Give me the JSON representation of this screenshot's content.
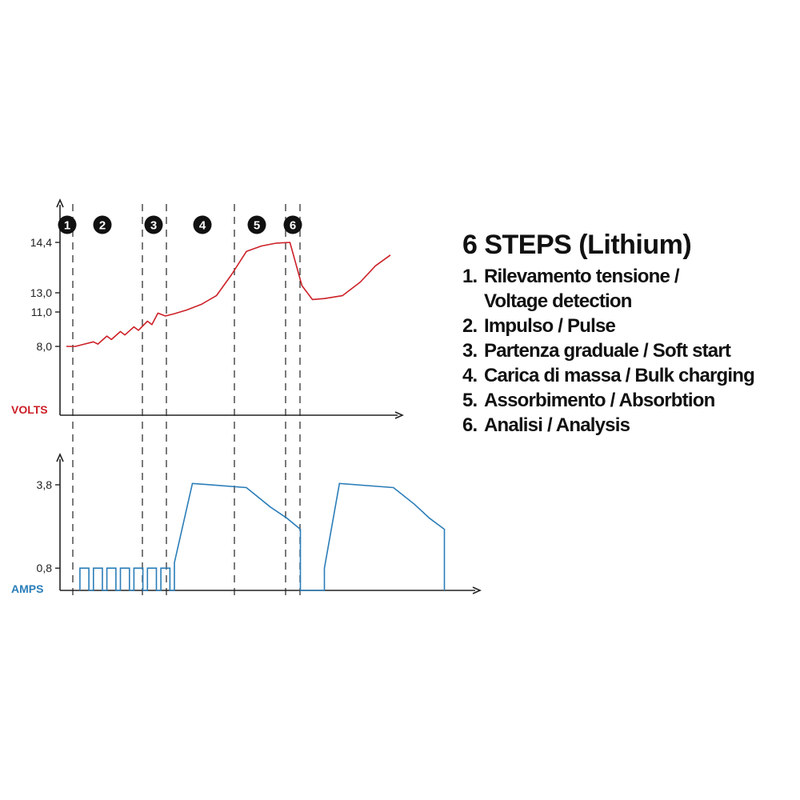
{
  "chart_data": [
    {
      "type": "line",
      "ylabel": "VOLTS",
      "yticks": [
        "8,0",
        "11,0",
        "13,0",
        "14,4"
      ],
      "ytick_values": [
        8.0,
        11.0,
        13.0,
        14.4
      ],
      "series": [
        {
          "color": "#cc2027",
          "points": [
            [
              0,
              8.0
            ],
            [
              0.3,
              8.0
            ],
            [
              0.6,
              8.2
            ],
            [
              0.9,
              8.4
            ],
            [
              1.05,
              8.2
            ],
            [
              1.35,
              8.9
            ],
            [
              1.5,
              8.6
            ],
            [
              1.8,
              9.3
            ],
            [
              1.95,
              9.0
            ],
            [
              2.25,
              9.7
            ],
            [
              2.4,
              9.4
            ],
            [
              2.7,
              10.2
            ],
            [
              2.85,
              9.9
            ],
            [
              3.05,
              10.9
            ],
            [
              3.3,
              10.65
            ],
            [
              3.6,
              10.85
            ],
            [
              4.0,
              11.2
            ],
            [
              4.5,
              11.8
            ],
            [
              5.0,
              12.7
            ],
            [
              5.5,
              13.5
            ],
            [
              6.0,
              14.15
            ],
            [
              6.5,
              14.3
            ],
            [
              7.0,
              14.38
            ],
            [
              7.45,
              14.4
            ],
            [
              7.85,
              13.2
            ],
            [
              8.2,
              12.3
            ],
            [
              8.6,
              12.4
            ],
            [
              9.2,
              12.7
            ],
            [
              9.8,
              13.3
            ],
            [
              10.3,
              13.75
            ],
            [
              10.8,
              14.05
            ]
          ]
        }
      ]
    },
    {
      "type": "line",
      "ylabel": "AMPS",
      "yticks": [
        "0,8",
        "3,8"
      ],
      "ytick_values": [
        0.8,
        3.8
      ],
      "series": [
        {
          "color": "#2a7db8",
          "points": [
            [
              0.45,
              0
            ],
            [
              0.45,
              0.8
            ],
            [
              0.75,
              0.8
            ],
            [
              0.75,
              0
            ],
            [
              0.9,
              0
            ],
            [
              0.9,
              0.8
            ],
            [
              1.2,
              0.8
            ],
            [
              1.2,
              0
            ],
            [
              1.35,
              0
            ],
            [
              1.35,
              0.8
            ],
            [
              1.65,
              0.8
            ],
            [
              1.65,
              0
            ],
            [
              1.8,
              0
            ],
            [
              1.8,
              0.8
            ],
            [
              2.1,
              0.8
            ],
            [
              2.1,
              0
            ],
            [
              2.25,
              0
            ],
            [
              2.25,
              0.8
            ],
            [
              2.55,
              0.8
            ],
            [
              2.55,
              0
            ],
            [
              2.7,
              0
            ],
            [
              2.7,
              0.8
            ],
            [
              3.0,
              0.8
            ],
            [
              3.0,
              0
            ],
            [
              3.15,
              0
            ],
            [
              3.15,
              0.8
            ],
            [
              3.45,
              0.8
            ],
            [
              3.45,
              0
            ],
            [
              3.6,
              0
            ],
            [
              3.6,
              1.0
            ],
            [
              4.2,
              3.85
            ],
            [
              6.0,
              3.7
            ],
            [
              6.8,
              3.0
            ],
            [
              7.35,
              2.6
            ],
            [
              7.8,
              2.2
            ],
            [
              7.8,
              0
            ],
            [
              8.6,
              0
            ],
            [
              8.6,
              0.8
            ],
            [
              9.1,
              3.85
            ],
            [
              10.9,
              3.7
            ],
            [
              11.6,
              3.1
            ],
            [
              12.1,
              2.6
            ],
            [
              12.6,
              2.2
            ],
            [
              12.6,
              0
            ]
          ]
        }
      ]
    }
  ],
  "steps": [
    "1",
    "2",
    "3",
    "4",
    "5",
    "6"
  ],
  "legend": {
    "title": "6 STEPS (Lithium)",
    "items": [
      {
        "num": "1.",
        "text": "Rilevamento tensione /",
        "text2": "Voltage detection"
      },
      {
        "num": "2.",
        "text": "Impulso / Pulse"
      },
      {
        "num": "3.",
        "text": "Partenza graduale / Soft start"
      },
      {
        "num": "4.",
        "text": "Carica di massa / Bulk charging"
      },
      {
        "num": "5.",
        "text": "Assorbimento / Absorbtion"
      },
      {
        "num": "6.",
        "text": "Analisi / Analysis"
      }
    ]
  }
}
